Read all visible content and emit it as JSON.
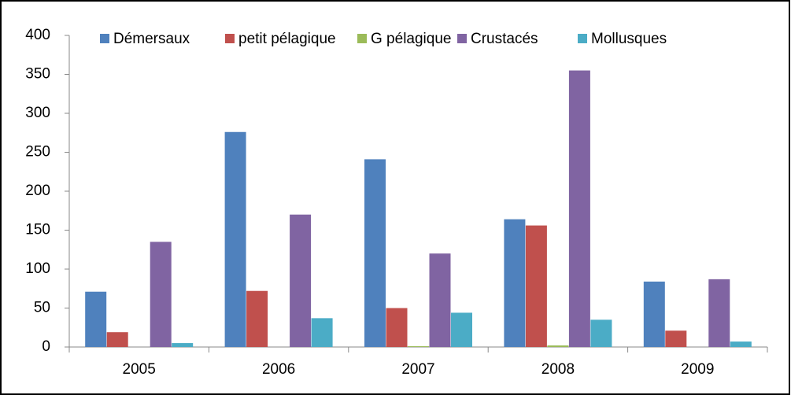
{
  "chart_data": {
    "type": "bar",
    "categories": [
      "2005",
      "2006",
      "2007",
      "2008",
      "2009"
    ],
    "series": [
      {
        "name": "Démersaux",
        "color": "#4f81bd",
        "values": [
          71,
          276,
          241,
          164,
          84
        ]
      },
      {
        "name": "petit pélagique",
        "color": "#c0504d",
        "values": [
          19,
          72,
          50,
          156,
          21
        ]
      },
      {
        "name": "G pélagique",
        "color": "#9bbb59",
        "values": [
          0,
          0,
          1,
          2,
          0
        ]
      },
      {
        "name": "Crustacés",
        "color": "#8064a2",
        "values": [
          135,
          170,
          120,
          355,
          87
        ]
      },
      {
        "name": "Mollusques",
        "color": "#4bacc6",
        "values": [
          5,
          37,
          44,
          35,
          7
        ]
      }
    ],
    "ylim": [
      0,
      400
    ],
    "yticks": [
      0,
      50,
      100,
      150,
      200,
      250,
      300,
      350,
      400
    ],
    "grid": false,
    "legend": "top"
  }
}
